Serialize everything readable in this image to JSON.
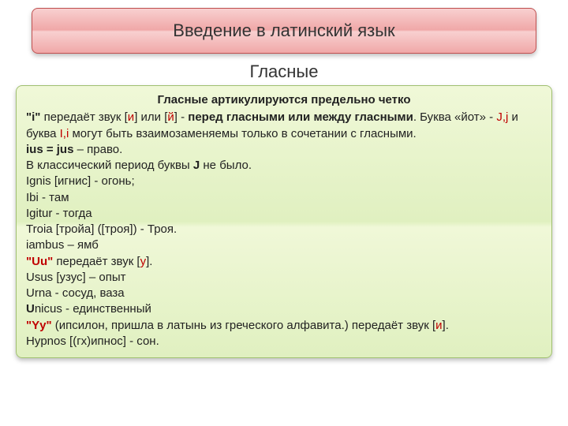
{
  "title": "Введение в латинский язык",
  "subtitle": "Гласные",
  "heading": "Гласные артикулируются предельно четко",
  "colors": {
    "title_bg_top": "#f8d0d0",
    "title_bg_bottom": "#f0a8a8",
    "title_border": "#c05050",
    "content_bg_top": "#f0f8d8",
    "content_bg_bottom": "#e0f0c0",
    "content_border": "#a0c070",
    "text": "#222222",
    "highlight": "#c00000"
  },
  "l1a": "\"i\"",
  "l1b": " передаёт звук [",
  "l1c": "и",
  "l1d": "] или [",
  "l1e": "й",
  "l1f": "] - ",
  "l1g": "перед гласными или между гласными",
  "l1h": ". Буква «йот» - ",
  "l1i": "J,j",
  "l1j": " и буква ",
  "l1k": "I,i",
  "l1l": " могут быть взаимозаменяемы только в сочетании с гласными.",
  "l2a": "ius = jus",
  "l2b": " – право.",
  "l3a": "В классический период буквы ",
  "l3b": "J",
  "l3c": " не было.",
  "l4": "Ignis [игнис] - огонь;",
  "l5": "Ibi - там",
  "l6": "Igitur - тогда",
  "l7": "Troia [тройа] ([троя]) - Троя.",
  "l8": "iambus – ямб",
  "l9a": "\"Uu\"",
  "l9b": "  передаёт звук [",
  "l9c": "у",
  "l9d": "].",
  "l10": "Usus [узус] – опыт",
  "l11": "Urna - сосуд, ваза",
  "l12a": "U",
  "l12b": "nicus - единственный",
  "l13a": "\"Yy\"",
  "l13b": " (ипсилон, пришла в латынь из греческого алфавита.) передаёт звук [",
  "l13c": "и",
  "l13d": "].",
  "l14": " Hypnos [(гх)ипнос] - сон."
}
